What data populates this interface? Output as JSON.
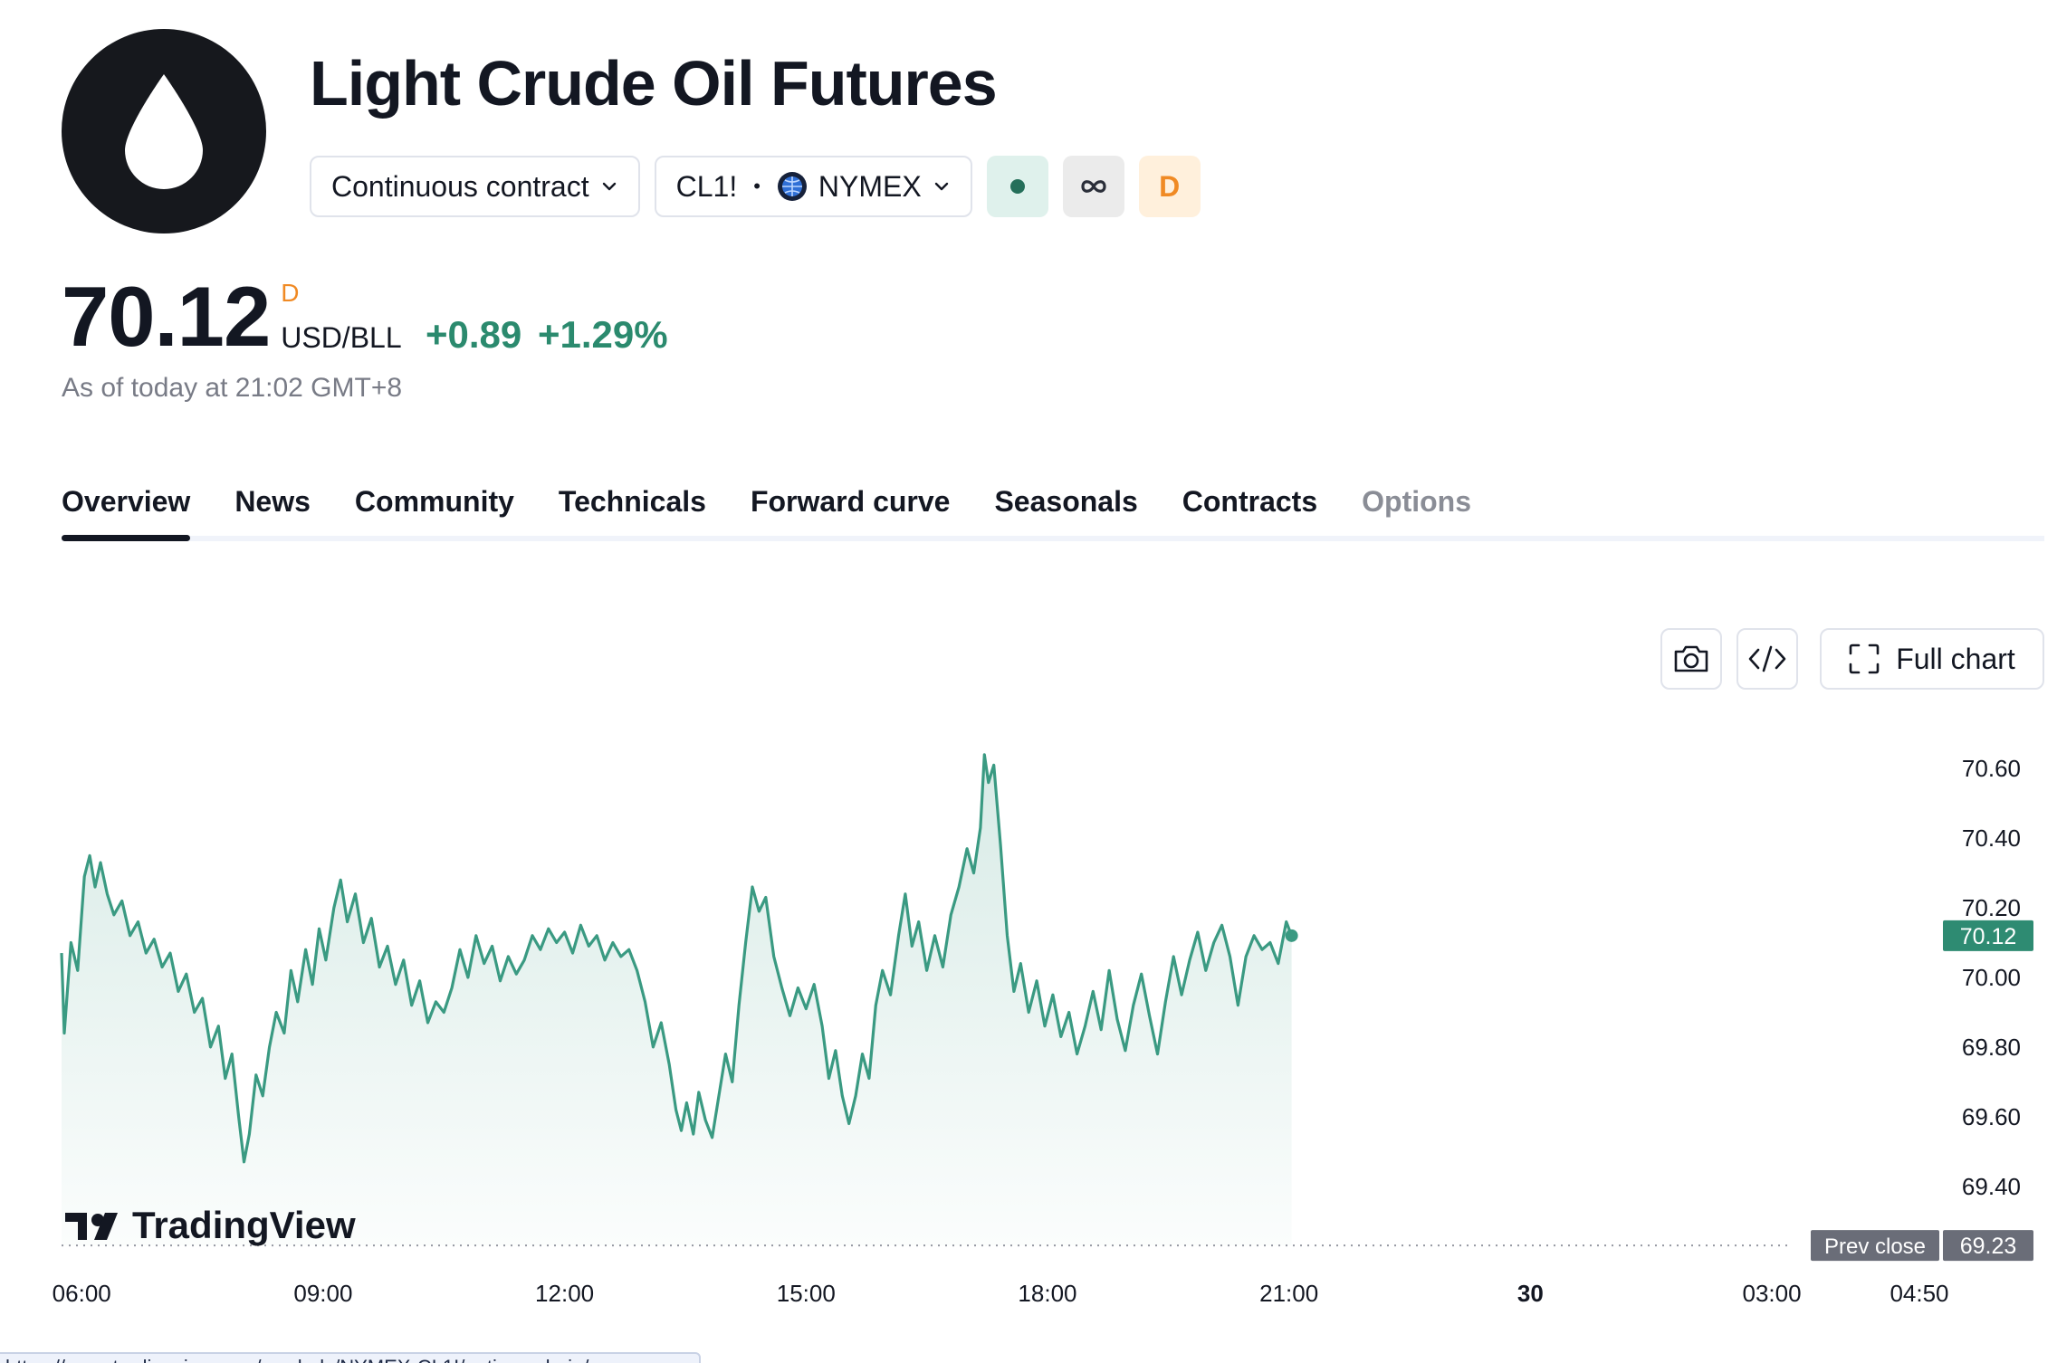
{
  "header": {
    "title": "Light Crude Oil Futures",
    "contract_select": "Continuous contract",
    "symbol": "CL1!",
    "exchange": "NYMEX",
    "badge_letter": "D",
    "logo_icon": "oil-drop-icon"
  },
  "quote": {
    "price": "70.12",
    "price_flag": "D",
    "currency": "USD/BLL",
    "change": "+0.89",
    "change_percent": "+1.29%",
    "as_of": "As of today at 21:02 GMT+8"
  },
  "tabs": [
    "Overview",
    "News",
    "Community",
    "Technicals",
    "Forward curve",
    "Seasonals",
    "Contracts",
    "Options"
  ],
  "active_tab": "Overview",
  "toolbar": {
    "full_chart_label": "Full chart"
  },
  "branding": {
    "watermark": "TradingView"
  },
  "status_bar": {
    "url": "https://www.tradingview.com/symbols/NYMEX-CL1!/options-chain/"
  },
  "colors": {
    "accent_green": "#2b8a6e",
    "line": "#3a9a82",
    "text": "#131722",
    "muted": "#787b86",
    "flag_orange": "#f08a24"
  },
  "chart_data": {
    "type": "area",
    "x_ticks": [
      "06:00",
      "09:00",
      "12:00",
      "15:00",
      "18:00",
      "21:00",
      "30",
      "03:00",
      "04:50"
    ],
    "y_ticks": [
      "70.60",
      "70.40",
      "70.20",
      "70.00",
      "69.80",
      "69.60",
      "69.40"
    ],
    "ylim": [
      69.22,
      70.78
    ],
    "x_time_range": [
      "05:45",
      "04:50"
    ],
    "last_price_label": "70.12",
    "prev_close_label": "Prev close",
    "prev_close": "69.23",
    "series": [
      {
        "points": [
          [
            "05:45",
            70.07
          ],
          [
            "05:47",
            69.84
          ],
          [
            "05:52",
            70.1
          ],
          [
            "05:57",
            70.02
          ],
          [
            "06:02",
            70.29
          ],
          [
            "06:06",
            70.35
          ],
          [
            "06:10",
            70.26
          ],
          [
            "06:14",
            70.33
          ],
          [
            "06:19",
            70.24
          ],
          [
            "06:24",
            70.18
          ],
          [
            "06:30",
            70.22
          ],
          [
            "06:36",
            70.12
          ],
          [
            "06:42",
            70.16
          ],
          [
            "06:48",
            70.07
          ],
          [
            "06:54",
            70.11
          ],
          [
            "07:00",
            70.03
          ],
          [
            "07:06",
            70.07
          ],
          [
            "07:12",
            69.96
          ],
          [
            "07:18",
            70.01
          ],
          [
            "07:24",
            69.9
          ],
          [
            "07:30",
            69.94
          ],
          [
            "07:36",
            69.8
          ],
          [
            "07:42",
            69.86
          ],
          [
            "07:47",
            69.71
          ],
          [
            "07:52",
            69.78
          ],
          [
            "07:57",
            69.6
          ],
          [
            "08:01",
            69.47
          ],
          [
            "08:05",
            69.55
          ],
          [
            "08:10",
            69.72
          ],
          [
            "08:15",
            69.66
          ],
          [
            "08:20",
            69.8
          ],
          [
            "08:25",
            69.9
          ],
          [
            "08:31",
            69.84
          ],
          [
            "08:36",
            70.02
          ],
          [
            "08:41",
            69.93
          ],
          [
            "08:47",
            70.08
          ],
          [
            "08:52",
            69.98
          ],
          [
            "08:57",
            70.14
          ],
          [
            "09:02",
            70.05
          ],
          [
            "09:08",
            70.2
          ],
          [
            "09:13",
            70.28
          ],
          [
            "09:18",
            70.16
          ],
          [
            "09:24",
            70.24
          ],
          [
            "09:30",
            70.1
          ],
          [
            "09:36",
            70.17
          ],
          [
            "09:42",
            70.03
          ],
          [
            "09:48",
            70.09
          ],
          [
            "09:54",
            69.98
          ],
          [
            "10:00",
            70.05
          ],
          [
            "10:06",
            69.92
          ],
          [
            "10:12",
            69.99
          ],
          [
            "10:18",
            69.87
          ],
          [
            "10:24",
            69.93
          ],
          [
            "10:30",
            69.9
          ],
          [
            "10:36",
            69.97
          ],
          [
            "10:42",
            70.08
          ],
          [
            "10:48",
            70.0
          ],
          [
            "10:54",
            70.12
          ],
          [
            "11:00",
            70.04
          ],
          [
            "11:06",
            70.09
          ],
          [
            "11:12",
            69.99
          ],
          [
            "11:18",
            70.06
          ],
          [
            "11:24",
            70.01
          ],
          [
            "11:30",
            70.05
          ],
          [
            "11:36",
            70.12
          ],
          [
            "11:42",
            70.08
          ],
          [
            "11:48",
            70.14
          ],
          [
            "11:54",
            70.1
          ],
          [
            "12:00",
            70.13
          ],
          [
            "12:06",
            70.07
          ],
          [
            "12:12",
            70.15
          ],
          [
            "12:18",
            70.09
          ],
          [
            "12:24",
            70.12
          ],
          [
            "12:30",
            70.05
          ],
          [
            "12:36",
            70.1
          ],
          [
            "12:42",
            70.06
          ],
          [
            "12:48",
            70.08
          ],
          [
            "12:54",
            70.02
          ],
          [
            "13:00",
            69.93
          ],
          [
            "13:06",
            69.8
          ],
          [
            "13:12",
            69.87
          ],
          [
            "13:18",
            69.75
          ],
          [
            "13:23",
            69.62
          ],
          [
            "13:27",
            69.56
          ],
          [
            "13:31",
            69.64
          ],
          [
            "13:36",
            69.55
          ],
          [
            "13:40",
            69.67
          ],
          [
            "13:45",
            69.59
          ],
          [
            "13:50",
            69.54
          ],
          [
            "13:55",
            69.66
          ],
          [
            "14:00",
            69.78
          ],
          [
            "14:05",
            69.7
          ],
          [
            "14:10",
            69.92
          ],
          [
            "14:15",
            70.1
          ],
          [
            "14:20",
            70.26
          ],
          [
            "14:25",
            70.19
          ],
          [
            "14:30",
            70.23
          ],
          [
            "14:36",
            70.06
          ],
          [
            "14:42",
            69.97
          ],
          [
            "14:48",
            69.89
          ],
          [
            "14:54",
            69.97
          ],
          [
            "15:00",
            69.91
          ],
          [
            "15:06",
            69.98
          ],
          [
            "15:12",
            69.86
          ],
          [
            "15:17",
            69.71
          ],
          [
            "15:22",
            69.79
          ],
          [
            "15:27",
            69.66
          ],
          [
            "15:32",
            69.58
          ],
          [
            "15:37",
            69.66
          ],
          [
            "15:42",
            69.78
          ],
          [
            "15:47",
            69.71
          ],
          [
            "15:52",
            69.92
          ],
          [
            "15:57",
            70.02
          ],
          [
            "16:03",
            69.95
          ],
          [
            "16:09",
            70.12
          ],
          [
            "16:14",
            70.24
          ],
          [
            "16:19",
            70.09
          ],
          [
            "16:24",
            70.16
          ],
          [
            "16:30",
            70.02
          ],
          [
            "16:36",
            70.12
          ],
          [
            "16:42",
            70.03
          ],
          [
            "16:48",
            70.18
          ],
          [
            "16:54",
            70.26
          ],
          [
            "17:00",
            70.37
          ],
          [
            "17:05",
            70.3
          ],
          [
            "17:10",
            70.43
          ],
          [
            "17:13",
            70.64
          ],
          [
            "17:16",
            70.56
          ],
          [
            "17:20",
            70.61
          ],
          [
            "17:25",
            70.38
          ],
          [
            "17:30",
            70.12
          ],
          [
            "17:35",
            69.96
          ],
          [
            "17:40",
            70.04
          ],
          [
            "17:46",
            69.9
          ],
          [
            "17:52",
            69.99
          ],
          [
            "17:58",
            69.86
          ],
          [
            "18:04",
            69.95
          ],
          [
            "18:10",
            69.83
          ],
          [
            "18:16",
            69.9
          ],
          [
            "18:22",
            69.78
          ],
          [
            "18:28",
            69.86
          ],
          [
            "18:34",
            69.96
          ],
          [
            "18:40",
            69.85
          ],
          [
            "18:46",
            70.02
          ],
          [
            "18:52",
            69.88
          ],
          [
            "18:58",
            69.79
          ],
          [
            "19:04",
            69.92
          ],
          [
            "19:10",
            70.01
          ],
          [
            "19:16",
            69.89
          ],
          [
            "19:22",
            69.78
          ],
          [
            "19:28",
            69.93
          ],
          [
            "19:34",
            70.06
          ],
          [
            "19:40",
            69.95
          ],
          [
            "19:46",
            70.05
          ],
          [
            "19:52",
            70.13
          ],
          [
            "19:58",
            70.02
          ],
          [
            "20:04",
            70.1
          ],
          [
            "20:10",
            70.15
          ],
          [
            "20:16",
            70.06
          ],
          [
            "20:22",
            69.92
          ],
          [
            "20:28",
            70.06
          ],
          [
            "20:34",
            70.12
          ],
          [
            "20:40",
            70.08
          ],
          [
            "20:46",
            70.1
          ],
          [
            "20:52",
            70.04
          ],
          [
            "20:58",
            70.16
          ],
          [
            "21:02",
            70.12
          ]
        ]
      }
    ]
  }
}
